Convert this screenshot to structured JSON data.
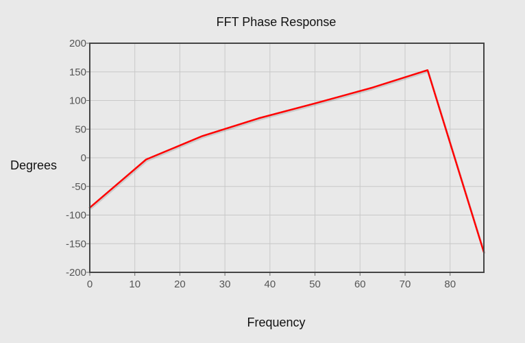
{
  "chart_data": {
    "type": "line",
    "title": "FFT Phase Response",
    "xlabel": "Frequency",
    "ylabel": "Degrees",
    "xlim": [
      0,
      87.5
    ],
    "ylim": [
      -200,
      200
    ],
    "x_ticks": [
      0,
      10,
      20,
      30,
      40,
      50,
      60,
      70,
      80
    ],
    "y_ticks": [
      200,
      150,
      100,
      50,
      0,
      -50,
      -100,
      -150,
      -200
    ],
    "grid": true,
    "legend": "none",
    "series": [
      {
        "color": "#ff0000",
        "x": [
          0,
          12.5,
          25,
          37.5,
          50,
          62.5,
          75,
          87.5
        ],
        "y": [
          -87,
          -3,
          38,
          69,
          95,
          122,
          153,
          -165
        ]
      }
    ]
  }
}
